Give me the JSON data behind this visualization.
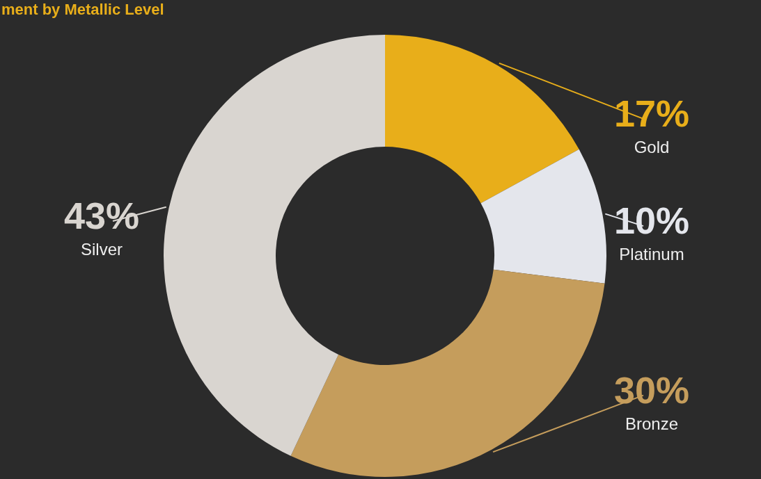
{
  "chart_data": {
    "type": "donut",
    "title": "ment by Metallic Level",
    "categories": [
      "Gold",
      "Platinum",
      "Bronze",
      "Silver"
    ],
    "values": [
      17,
      10,
      30,
      43
    ],
    "value_labels": [
      "17%",
      "10%",
      "30%",
      "43%"
    ],
    "colors": [
      "#e8ae1a",
      "#e4e6ec",
      "#c59d5c",
      "#d9d5d0"
    ]
  }
}
